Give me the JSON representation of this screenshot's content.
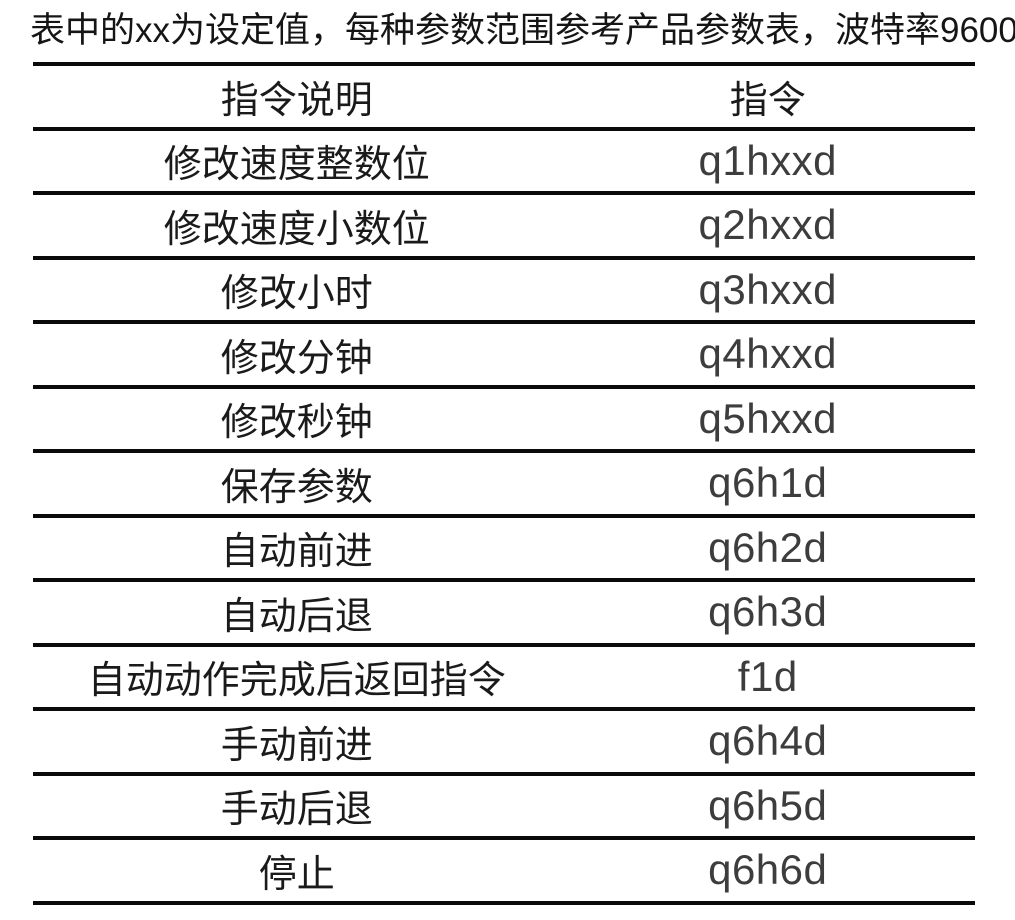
{
  "note": "表中的xx为设定值，每种参数范围参考产品参数表，波特率9600",
  "table": {
    "headers": {
      "description": "指令说明",
      "command": "指令"
    },
    "rows": [
      {
        "description": "修改速度整数位",
        "command": "q1hxxd"
      },
      {
        "description": "修改速度小数位",
        "command": "q2hxxd"
      },
      {
        "description": "修改小时",
        "command": "q3hxxd"
      },
      {
        "description": "修改分钟",
        "command": "q4hxxd"
      },
      {
        "description": "修改秒钟",
        "command": "q5hxxd"
      },
      {
        "description": "保存参数",
        "command": "q6h1d"
      },
      {
        "description": "自动前进",
        "command": "q6h2d"
      },
      {
        "description": "自动后退",
        "command": "q6h3d"
      },
      {
        "description": "自动动作完成后返回指令",
        "command": "f1d"
      },
      {
        "description": "手动前进",
        "command": "q6h4d"
      },
      {
        "description": "手动后退",
        "command": "q6h5d"
      },
      {
        "description": "停止",
        "command": "q6h6d"
      }
    ]
  },
  "colors": {
    "background": "#ffffff",
    "rule_line": "#0a0a0a",
    "description_text": "#1a1a1a",
    "command_text": "#3d3d3d"
  }
}
